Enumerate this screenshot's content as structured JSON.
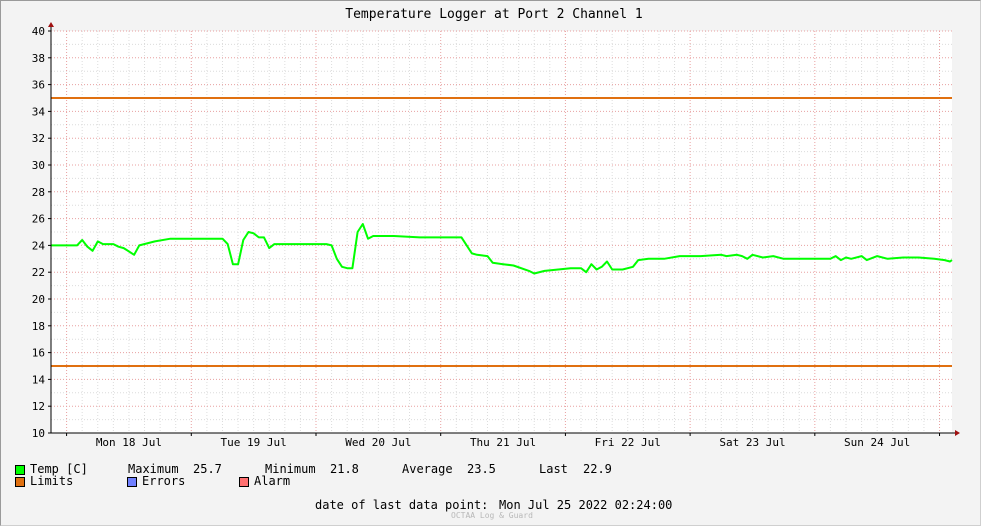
{
  "chart_data": {
    "type": "line",
    "title": "Temperature Logger at Port 2 Channel 1",
    "ylim": [
      10,
      40
    ],
    "yticks": [
      10,
      12,
      14,
      16,
      18,
      20,
      22,
      24,
      26,
      28,
      30,
      32,
      34,
      36,
      38,
      40
    ],
    "x_start": "2022-07-17 21:00",
    "x_end": "2022-07-25 02:24",
    "xticks": [
      {
        "label": "Mon 18 Jul",
        "at": "2022-07-18 12:00"
      },
      {
        "label": "Tue 19 Jul",
        "at": "2022-07-19 12:00"
      },
      {
        "label": "Wed 20 Jul",
        "at": "2022-07-20 12:00"
      },
      {
        "label": "Thu 21 Jul",
        "at": "2022-07-21 12:00"
      },
      {
        "label": "Fri 22 Jul",
        "at": "2022-07-22 12:00"
      },
      {
        "label": "Sat 23 Jul",
        "at": "2022-07-23 12:00"
      },
      {
        "label": "Sun 24 Jul",
        "at": "2022-07-24 12:00"
      }
    ],
    "grid": true,
    "limits": {
      "upper": 35,
      "lower": 15,
      "color": "#e07010"
    },
    "series": [
      {
        "name": "Temp [C]",
        "color": "#00ff00",
        "points": [
          [
            "2022-07-17 21:00",
            24.0
          ],
          [
            "2022-07-18 02:00",
            24.0
          ],
          [
            "2022-07-18 03:00",
            24.4
          ],
          [
            "2022-07-18 04:00",
            23.9
          ],
          [
            "2022-07-18 05:00",
            23.6
          ],
          [
            "2022-07-18 06:00",
            24.3
          ],
          [
            "2022-07-18 07:00",
            24.1
          ],
          [
            "2022-07-18 09:00",
            24.1
          ],
          [
            "2022-07-18 10:00",
            23.9
          ],
          [
            "2022-07-18 11:00",
            23.8
          ],
          [
            "2022-07-18 13:00",
            23.3
          ],
          [
            "2022-07-18 14:00",
            24.0
          ],
          [
            "2022-07-18 17:00",
            24.3
          ],
          [
            "2022-07-18 20:00",
            24.5
          ],
          [
            "2022-07-18 23:00",
            24.5
          ],
          [
            "2022-07-19 06:00",
            24.5
          ],
          [
            "2022-07-19 07:00",
            24.1
          ],
          [
            "2022-07-19 08:00",
            22.6
          ],
          [
            "2022-07-19 09:00",
            22.6
          ],
          [
            "2022-07-19 10:00",
            24.4
          ],
          [
            "2022-07-19 11:00",
            25.0
          ],
          [
            "2022-07-19 12:00",
            24.9
          ],
          [
            "2022-07-19 13:00",
            24.6
          ],
          [
            "2022-07-19 14:00",
            24.6
          ],
          [
            "2022-07-19 15:00",
            23.8
          ],
          [
            "2022-07-19 16:00",
            24.1
          ],
          [
            "2022-07-19 18:00",
            24.1
          ],
          [
            "2022-07-20 02:00",
            24.1
          ],
          [
            "2022-07-20 03:00",
            24.0
          ],
          [
            "2022-07-20 04:00",
            23.0
          ],
          [
            "2022-07-20 05:00",
            22.4
          ],
          [
            "2022-07-20 06:00",
            22.3
          ],
          [
            "2022-07-20 07:00",
            22.3
          ],
          [
            "2022-07-20 08:00",
            25.0
          ],
          [
            "2022-07-20 09:00",
            25.6
          ],
          [
            "2022-07-20 10:00",
            24.5
          ],
          [
            "2022-07-20 11:00",
            24.7
          ],
          [
            "2022-07-20 15:00",
            24.7
          ],
          [
            "2022-07-20 20:00",
            24.6
          ],
          [
            "2022-07-21 00:00",
            24.6
          ],
          [
            "2022-07-21 04:00",
            24.6
          ],
          [
            "2022-07-21 05:00",
            24.0
          ],
          [
            "2022-07-21 06:00",
            23.4
          ],
          [
            "2022-07-21 07:00",
            23.3
          ],
          [
            "2022-07-21 09:00",
            23.2
          ],
          [
            "2022-07-21 10:00",
            22.7
          ],
          [
            "2022-07-21 12:00",
            22.6
          ],
          [
            "2022-07-21 14:00",
            22.5
          ],
          [
            "2022-07-21 17:00",
            22.1
          ],
          [
            "2022-07-21 18:00",
            21.9
          ],
          [
            "2022-07-21 20:00",
            22.1
          ],
          [
            "2022-07-22 01:00",
            22.3
          ],
          [
            "2022-07-22 03:00",
            22.3
          ],
          [
            "2022-07-22 04:00",
            22.0
          ],
          [
            "2022-07-22 05:00",
            22.6
          ],
          [
            "2022-07-22 06:00",
            22.2
          ],
          [
            "2022-07-22 07:00",
            22.4
          ],
          [
            "2022-07-22 08:00",
            22.8
          ],
          [
            "2022-07-22 09:00",
            22.2
          ],
          [
            "2022-07-22 11:00",
            22.2
          ],
          [
            "2022-07-22 13:00",
            22.4
          ],
          [
            "2022-07-22 14:00",
            22.9
          ],
          [
            "2022-07-22 16:00",
            23.0
          ],
          [
            "2022-07-22 19:00",
            23.0
          ],
          [
            "2022-07-22 22:00",
            23.2
          ],
          [
            "2022-07-23 02:00",
            23.2
          ],
          [
            "2022-07-23 06:00",
            23.3
          ],
          [
            "2022-07-23 07:00",
            23.2
          ],
          [
            "2022-07-23 09:00",
            23.3
          ],
          [
            "2022-07-23 10:00",
            23.2
          ],
          [
            "2022-07-23 11:00",
            23.0
          ],
          [
            "2022-07-23 12:00",
            23.3
          ],
          [
            "2022-07-23 14:00",
            23.1
          ],
          [
            "2022-07-23 16:00",
            23.2
          ],
          [
            "2022-07-23 18:00",
            23.0
          ],
          [
            "2022-07-23 21:00",
            23.0
          ],
          [
            "2022-07-24 00:00",
            23.0
          ],
          [
            "2022-07-24 03:00",
            23.0
          ],
          [
            "2022-07-24 04:00",
            23.2
          ],
          [
            "2022-07-24 05:00",
            22.9
          ],
          [
            "2022-07-24 06:00",
            23.1
          ],
          [
            "2022-07-24 07:00",
            23.0
          ],
          [
            "2022-07-24 09:00",
            23.2
          ],
          [
            "2022-07-24 10:00",
            22.9
          ],
          [
            "2022-07-24 12:00",
            23.2
          ],
          [
            "2022-07-24 14:00",
            23.0
          ],
          [
            "2022-07-24 17:00",
            23.1
          ],
          [
            "2022-07-24 20:00",
            23.1
          ],
          [
            "2022-07-24 23:00",
            23.0
          ],
          [
            "2022-07-25 01:00",
            22.9
          ],
          [
            "2022-07-25 02:00",
            22.8
          ],
          [
            "2022-07-25 02:24",
            22.9
          ]
        ]
      }
    ]
  },
  "legend": {
    "temp_label": "Temp [C]",
    "temp_color": "#00ff00",
    "maximum_label": "Maximum",
    "maximum_value": "25.7",
    "minimum_label": "Minimum",
    "minimum_value": "21.8",
    "average_label": "Average",
    "average_value": "23.5",
    "last_label": "Last",
    "last_value": "22.9",
    "limits_label": "Limits",
    "limits_color": "#e07010",
    "errors_label": "Errors",
    "errors_color": "#7080ff",
    "alarm_label": "Alarm",
    "alarm_color": "#ff7070"
  },
  "footer": {
    "last_point_label": "date of last data point:",
    "last_point_value": "Mon Jul 25 2022 02:24:00",
    "credit": "OCTAA Log & Guard"
  }
}
